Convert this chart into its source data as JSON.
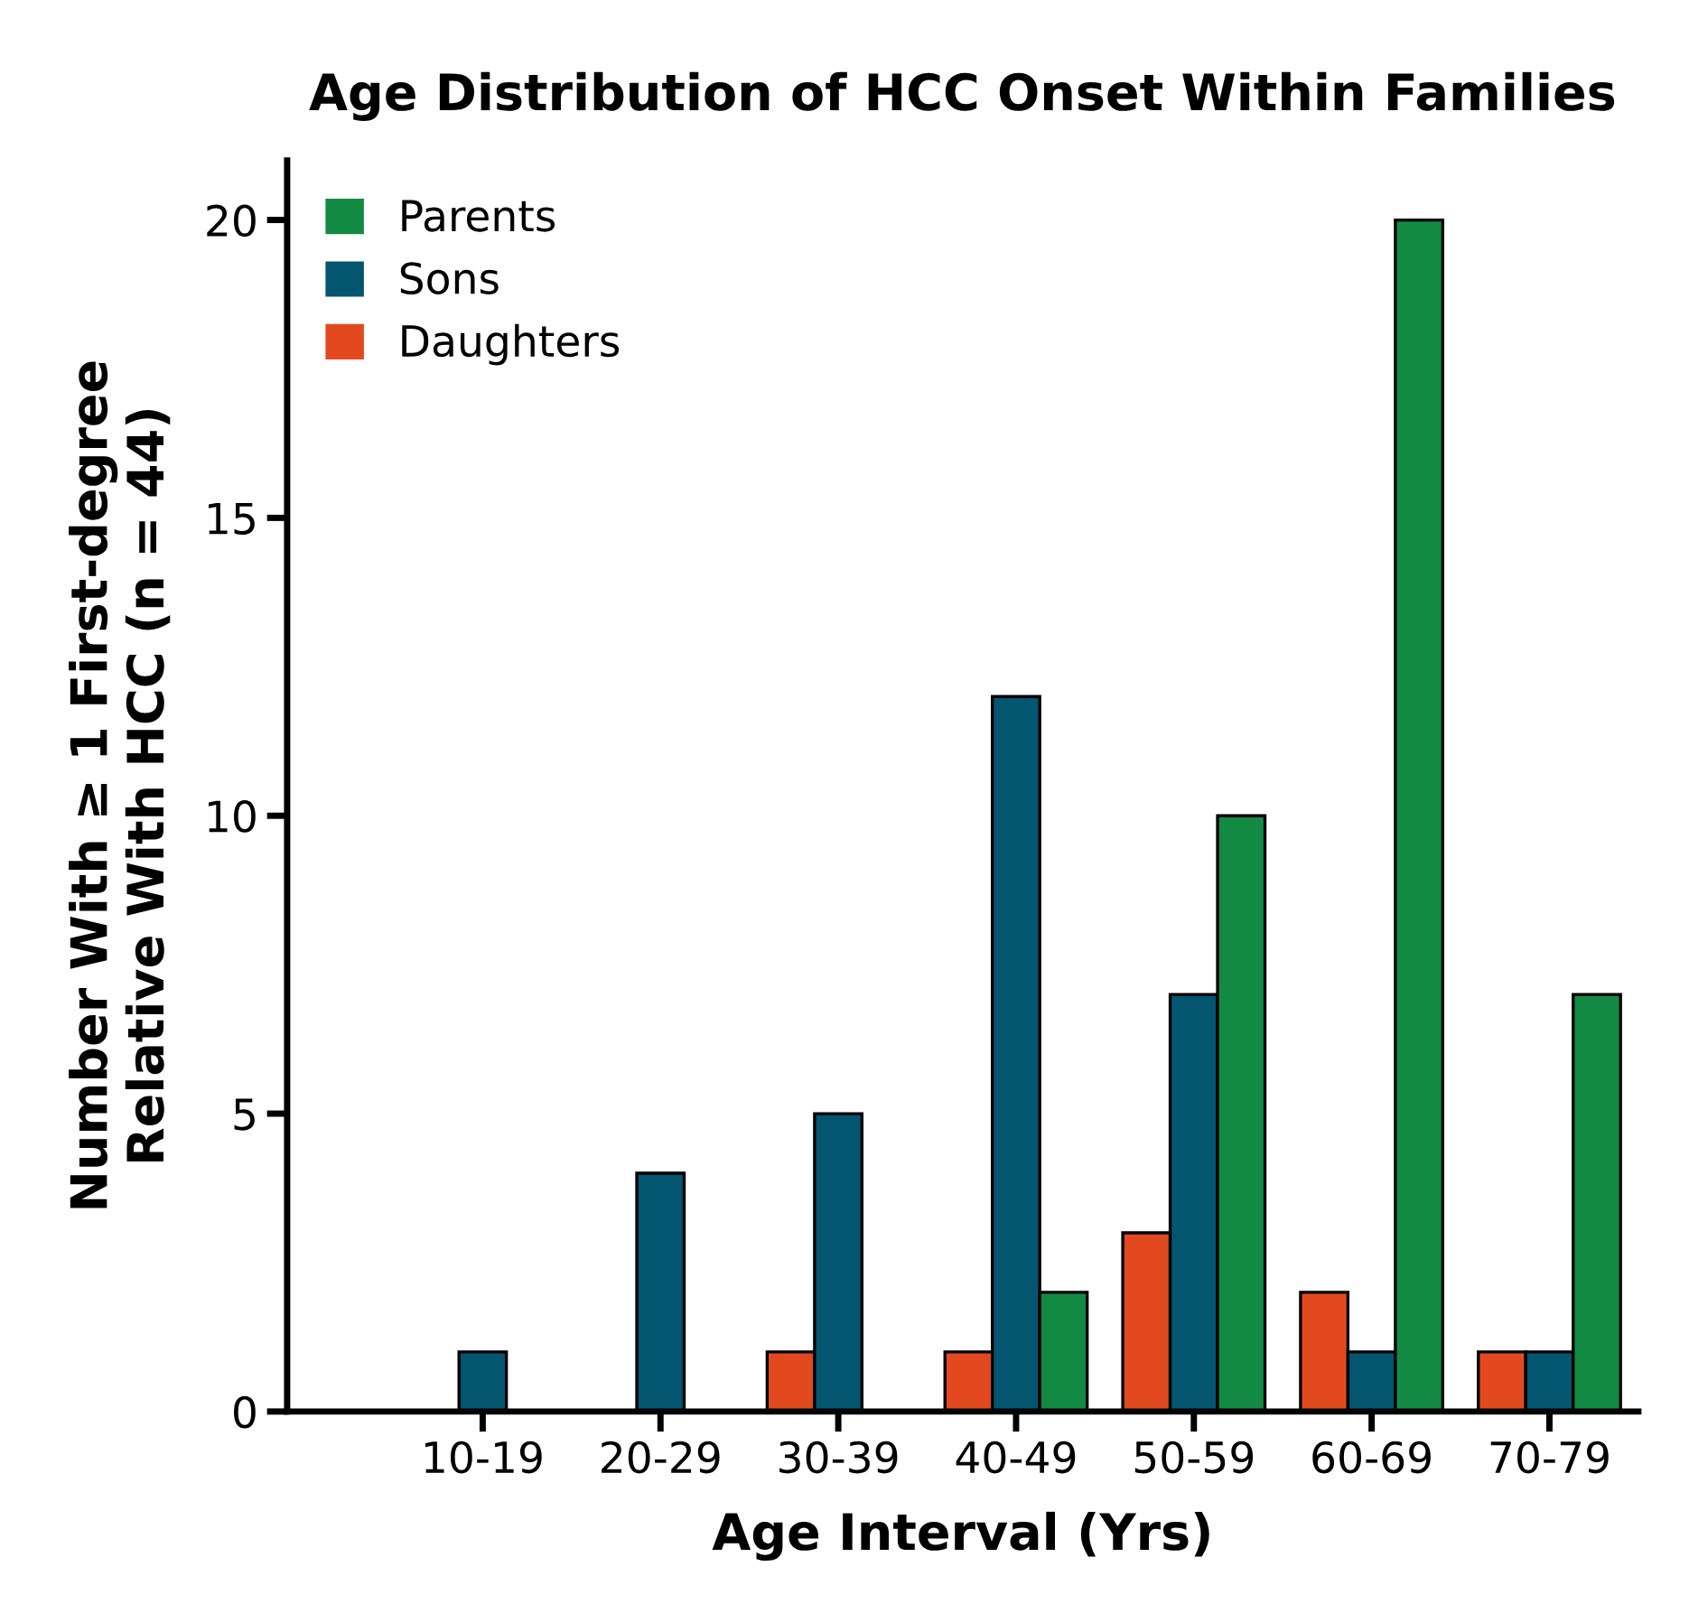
{
  "chart_data": {
    "type": "bar",
    "title": "Age Distribution of HCC Onset Within Families",
    "xlabel": "Age Interval (Yrs)",
    "ylabel": "Number With ≥ 1 First-degree\nRelative With HCC (n = 44)",
    "categories": [
      "10-19",
      "20-29",
      "30-39",
      "40-49",
      "50-59",
      "60-69",
      "70-79"
    ],
    "series": [
      {
        "name": "Daughters",
        "color": "#e3491f",
        "values": [
          0,
          0,
          1,
          1,
          3,
          2,
          1
        ]
      },
      {
        "name": "Sons",
        "color": "#045570",
        "values": [
          1,
          4,
          5,
          12,
          7,
          1,
          1
        ]
      },
      {
        "name": "Parents",
        "color": "#138a43",
        "values": [
          0,
          0,
          0,
          2,
          10,
          20,
          7
        ]
      }
    ],
    "ylim": [
      0,
      21
    ],
    "yticks": [
      0,
      5,
      10,
      15,
      20
    ],
    "grid": false,
    "legend": "top left"
  }
}
